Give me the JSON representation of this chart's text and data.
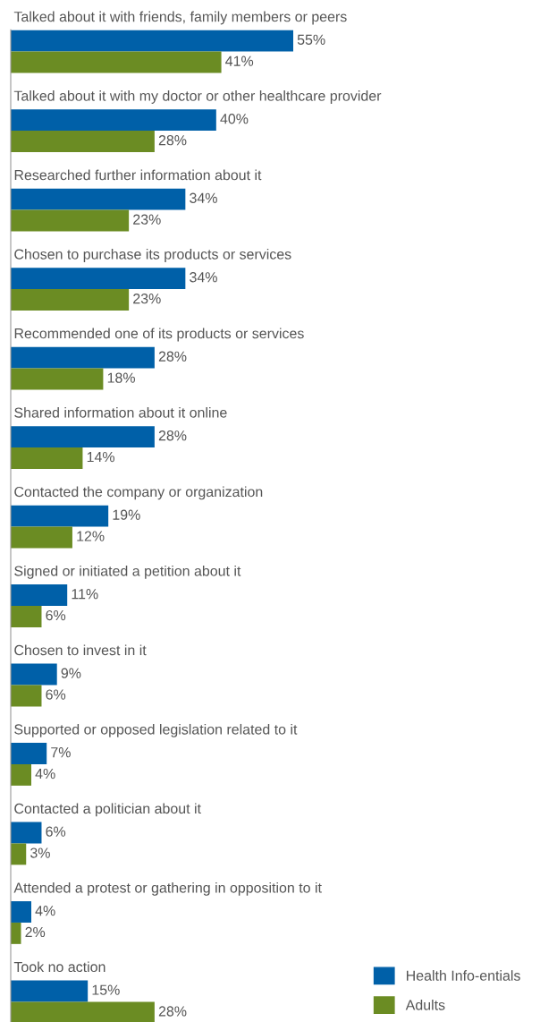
{
  "chart_data": {
    "type": "bar",
    "orientation": "horizontal",
    "categories": [
      "Talked about it with friends, family members or peers",
      "Talked about it with my doctor or other healthcare provider",
      "Researched further information about it",
      "Chosen to purchase its products or services",
      "Recommended one of its products or services",
      "Shared information about it online",
      "Contacted the company or organization",
      "Signed or initiated a petition about it",
      "Chosen to invest in it",
      "Supported or opposed legislation related to it",
      "Contacted a politician about it",
      "Attended a protest or gathering in opposition to it",
      "Took no action"
    ],
    "series": [
      {
        "name": "Health Info-entials",
        "color": "#0060a8",
        "values": [
          55,
          40,
          34,
          34,
          28,
          28,
          19,
          11,
          9,
          7,
          6,
          4,
          15
        ],
        "value_labels": [
          "55%",
          "40%",
          "34%",
          "34%",
          "28%",
          "28%",
          "19%",
          "11%",
          "9%",
          "7%",
          "6%",
          "4%",
          "15%"
        ]
      },
      {
        "name": "Adults",
        "color": "#6b8c23",
        "values": [
          41,
          28,
          23,
          23,
          18,
          14,
          12,
          6,
          6,
          4,
          3,
          2,
          28
        ],
        "value_labels": [
          "41%",
          "28%",
          "23%",
          "23%",
          "18%",
          "14%",
          "12%",
          "6%",
          "6%",
          "4%",
          "3%",
          "2%",
          "28%"
        ]
      }
    ],
    "legend": "bottom right"
  }
}
